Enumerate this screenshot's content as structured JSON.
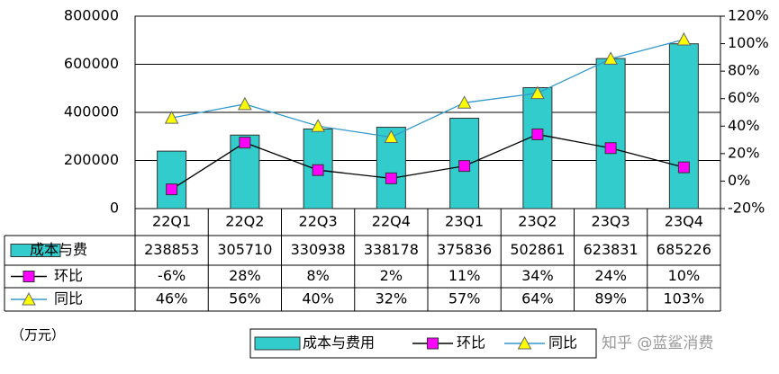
{
  "chart_data": {
    "type": "bar-line-table",
    "unit_label": "（万元）",
    "watermark": "知乎 @蓝鲨消费",
    "table_first_label": "成本与费",
    "categories": [
      "22Q1",
      "22Q2",
      "22Q3",
      "22Q4",
      "23Q1",
      "23Q2",
      "23Q3",
      "23Q4"
    ],
    "series": [
      {
        "name": "成本与费用",
        "type": "bar",
        "color": "#33cccc",
        "values": [
          238853,
          305710,
          330938,
          338178,
          375836,
          502861,
          623831,
          685226
        ]
      },
      {
        "name": "环比",
        "type": "line",
        "axis": "y2",
        "color": "#000000",
        "marker_color": "#ff00ff",
        "marker": "square",
        "values": [
          -6,
          28,
          8,
          2,
          11,
          34,
          24,
          10
        ],
        "value_labels": [
          "-6%",
          "28%",
          "8%",
          "2%",
          "11%",
          "34%",
          "24%",
          "10%"
        ]
      },
      {
        "name": "同比",
        "type": "line",
        "axis": "y2",
        "color": "#3399cc",
        "marker_color": "#ffff00",
        "marker": "triangle",
        "values": [
          46,
          56,
          40,
          32,
          57,
          64,
          89,
          103
        ],
        "value_labels": [
          "46%",
          "56%",
          "40%",
          "32%",
          "57%",
          "64%",
          "89%",
          "103%"
        ]
      }
    ],
    "ylim": [
      0,
      800000
    ],
    "yticks": [
      0,
      200000,
      400000,
      600000,
      800000
    ],
    "y2lim": [
      -20,
      120
    ],
    "y2ticks": [
      {
        "value": -20,
        "label": "-20%"
      },
      {
        "value": 0,
        "label": "0%"
      },
      {
        "value": 20,
        "label": "20%"
      },
      {
        "value": 40,
        "label": "40%"
      },
      {
        "value": 60,
        "label": "60%"
      },
      {
        "value": 80,
        "label": "80%"
      },
      {
        "value": 100,
        "label": "100%"
      },
      {
        "value": 120,
        "label": "120%"
      }
    ],
    "grid": true
  }
}
